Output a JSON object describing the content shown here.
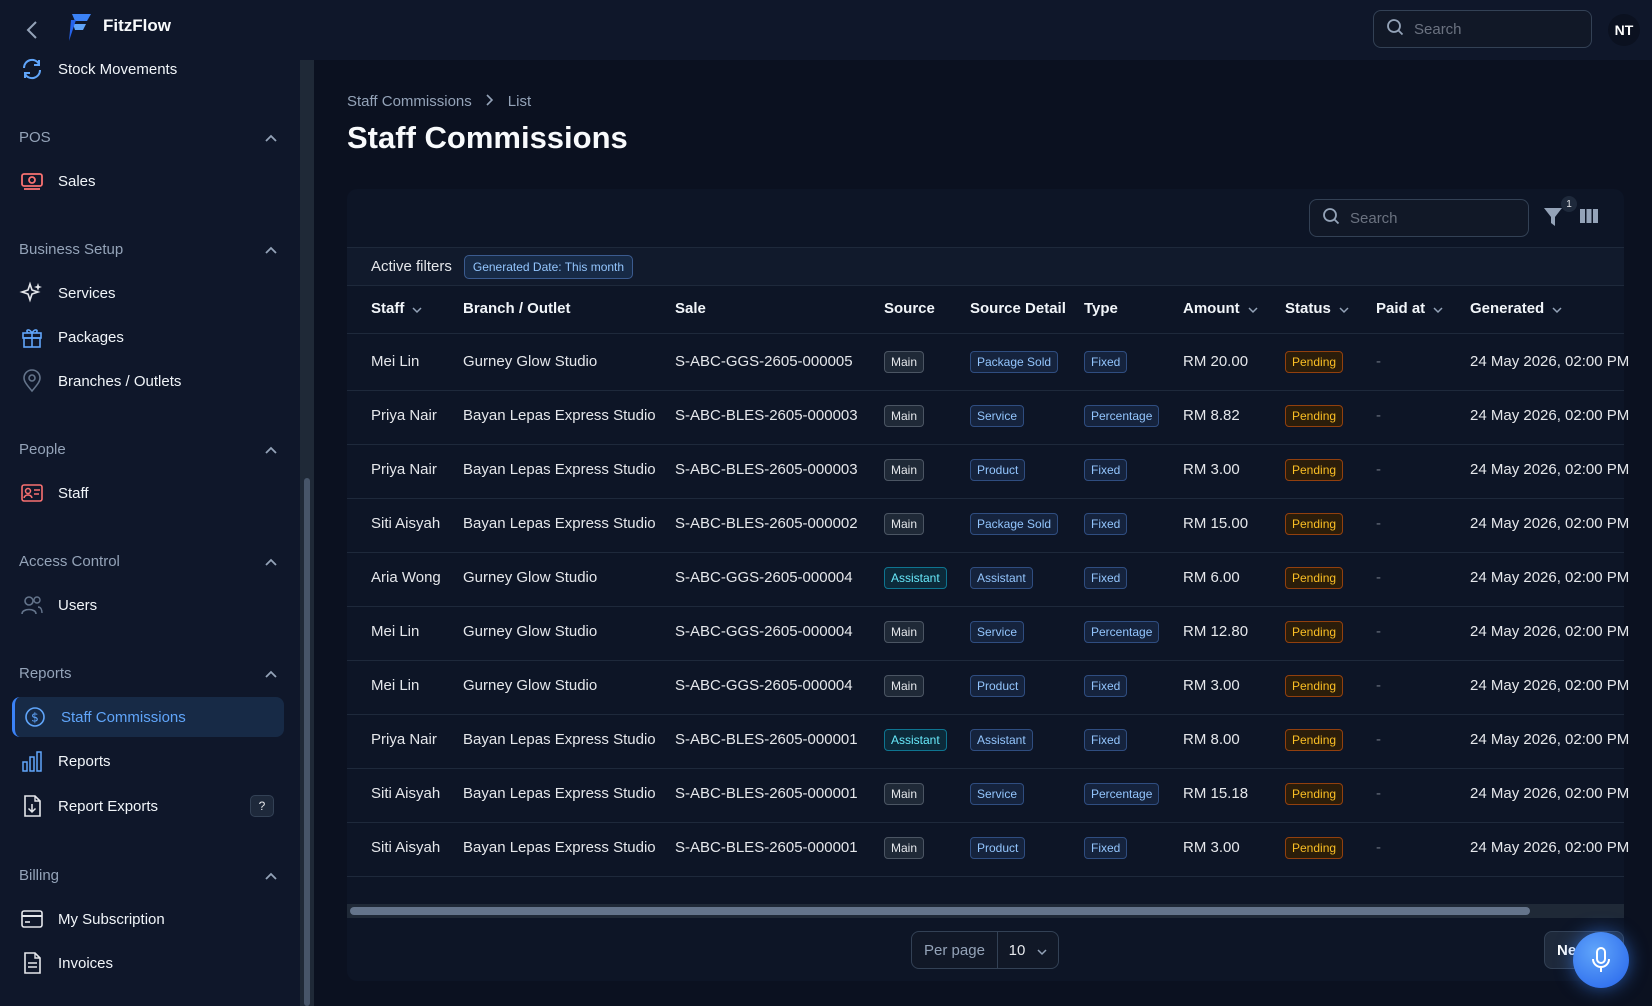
{
  "app": {
    "brand": "FitzFlow",
    "avatar_initials": "NT"
  },
  "topbar": {
    "search_placeholder": "Search"
  },
  "sidebar": {
    "top_item": {
      "label": "Stock Movements",
      "icon": "refresh-icon"
    },
    "groups": [
      {
        "title": "POS",
        "items": [
          {
            "label": "Sales",
            "icon": "cash-icon"
          }
        ]
      },
      {
        "title": "Business Setup",
        "items": [
          {
            "label": "Services",
            "icon": "sparkles-icon"
          },
          {
            "label": "Packages",
            "icon": "gift-icon"
          },
          {
            "label": "Branches / Outlets",
            "icon": "map-pin-icon"
          }
        ]
      },
      {
        "title": "People",
        "items": [
          {
            "label": "Staff",
            "icon": "id-card-icon"
          }
        ]
      },
      {
        "title": "Access Control",
        "items": [
          {
            "label": "Users",
            "icon": "users-icon"
          }
        ]
      },
      {
        "title": "Reports",
        "items": [
          {
            "label": "Staff Commissions",
            "icon": "dollar-circle-icon",
            "active": true
          },
          {
            "label": "Reports",
            "icon": "bar-chart-icon"
          },
          {
            "label": "Report Exports",
            "icon": "file-export-icon",
            "badge": "?"
          }
        ]
      },
      {
        "title": "Billing",
        "items": [
          {
            "label": "My Subscription",
            "icon": "credit-card-icon"
          },
          {
            "label": "Invoices",
            "icon": "document-icon"
          }
        ]
      }
    ]
  },
  "breadcrumb": {
    "parent": "Staff Commissions",
    "current": "List"
  },
  "page": {
    "title": "Staff Commissions"
  },
  "table_toolbar": {
    "search_placeholder": "Search",
    "filter_count": "1"
  },
  "active_filters": {
    "label": "Active filters",
    "chip": "Generated Date: This month"
  },
  "columns": [
    "Staff",
    "Branch / Outlet",
    "Sale",
    "Source",
    "Source Detail",
    "Type",
    "Amount",
    "Status",
    "Paid at",
    "Generated"
  ],
  "rows": [
    {
      "staff": "Mei Lin",
      "branch": "Gurney Glow Studio",
      "sale": "S-ABC-GGS-2605-000005",
      "source": "Main",
      "source_detail": "Package Sold",
      "type": "Fixed",
      "amount": "RM 20.00",
      "status": "Pending",
      "paid_at": "-",
      "generated": "24 May 2026, 02:00 PM"
    },
    {
      "staff": "Priya Nair",
      "branch": "Bayan Lepas Express Studio",
      "sale": "S-ABC-BLES-2605-000003",
      "source": "Main",
      "source_detail": "Service",
      "type": "Percentage",
      "amount": "RM 8.82",
      "status": "Pending",
      "paid_at": "-",
      "generated": "24 May 2026, 02:00 PM"
    },
    {
      "staff": "Priya Nair",
      "branch": "Bayan Lepas Express Studio",
      "sale": "S-ABC-BLES-2605-000003",
      "source": "Main",
      "source_detail": "Product",
      "type": "Fixed",
      "amount": "RM 3.00",
      "status": "Pending",
      "paid_at": "-",
      "generated": "24 May 2026, 02:00 PM"
    },
    {
      "staff": "Siti Aisyah",
      "branch": "Bayan Lepas Express Studio",
      "sale": "S-ABC-BLES-2605-000002",
      "source": "Main",
      "source_detail": "Package Sold",
      "type": "Fixed",
      "amount": "RM 15.00",
      "status": "Pending",
      "paid_at": "-",
      "generated": "24 May 2026, 02:00 PM"
    },
    {
      "staff": "Aria Wong",
      "branch": "Gurney Glow Studio",
      "sale": "S-ABC-GGS-2605-000004",
      "source": "Assistant",
      "source_detail": "Assistant",
      "type": "Fixed",
      "amount": "RM 6.00",
      "status": "Pending",
      "paid_at": "-",
      "generated": "24 May 2026, 02:00 PM"
    },
    {
      "staff": "Mei Lin",
      "branch": "Gurney Glow Studio",
      "sale": "S-ABC-GGS-2605-000004",
      "source": "Main",
      "source_detail": "Service",
      "type": "Percentage",
      "amount": "RM 12.80",
      "status": "Pending",
      "paid_at": "-",
      "generated": "24 May 2026, 02:00 PM"
    },
    {
      "staff": "Mei Lin",
      "branch": "Gurney Glow Studio",
      "sale": "S-ABC-GGS-2605-000004",
      "source": "Main",
      "source_detail": "Product",
      "type": "Fixed",
      "amount": "RM 3.00",
      "status": "Pending",
      "paid_at": "-",
      "generated": "24 May 2026, 02:00 PM"
    },
    {
      "staff": "Priya Nair",
      "branch": "Bayan Lepas Express Studio",
      "sale": "S-ABC-BLES-2605-000001",
      "source": "Assistant",
      "source_detail": "Assistant",
      "type": "Fixed",
      "amount": "RM 8.00",
      "status": "Pending",
      "paid_at": "-",
      "generated": "24 May 2026, 02:00 PM"
    },
    {
      "staff": "Siti Aisyah",
      "branch": "Bayan Lepas Express Studio",
      "sale": "S-ABC-BLES-2605-000001",
      "source": "Main",
      "source_detail": "Service",
      "type": "Percentage",
      "amount": "RM 15.18",
      "status": "Pending",
      "paid_at": "-",
      "generated": "24 May 2026, 02:00 PM"
    },
    {
      "staff": "Siti Aisyah",
      "branch": "Bayan Lepas Express Studio",
      "sale": "S-ABC-BLES-2605-000001",
      "source": "Main",
      "source_detail": "Product",
      "type": "Fixed",
      "amount": "RM 3.00",
      "status": "Pending",
      "paid_at": "-",
      "generated": "24 May 2026, 02:00 PM"
    }
  ],
  "pagination": {
    "per_page_label": "Per page",
    "per_page_value": "10",
    "next_label": "Next"
  },
  "colors": {
    "accent": "#3b82f6",
    "pending": "#fbbf24",
    "background": "#0b1120"
  }
}
